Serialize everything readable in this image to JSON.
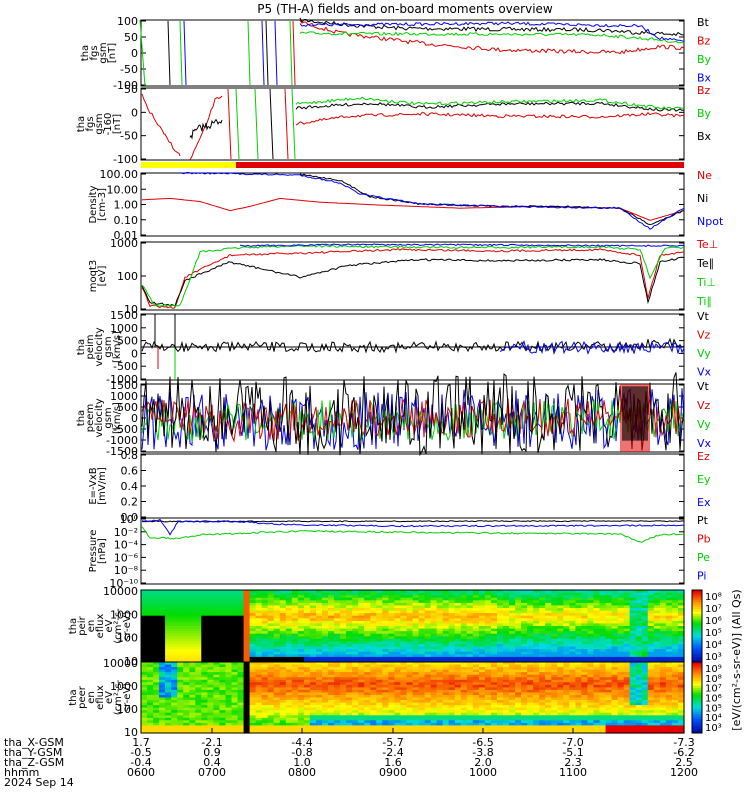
{
  "title": "P5 (TH-A) fields and on-board moments overview",
  "colors": {
    "black": "#000000",
    "red": "#e00000",
    "green": "#00d000",
    "blue": "#0000ff",
    "yellow": "#ffff00"
  },
  "footer": {
    "rows": [
      {
        "label": "tha_X-GSM",
        "values": [
          "1.7",
          "-2.1",
          "-4.4",
          "-5.7",
          "-6.5",
          "-7.0",
          "-7.3"
        ]
      },
      {
        "label": "tha_Y-GSM",
        "values": [
          "-0.5",
          "0.9",
          "-0.8",
          "-2.4",
          "-3.8",
          "-5.1",
          "-6.2"
        ]
      },
      {
        "label": "tha_Z-GSM",
        "values": [
          "-0.4",
          "0.4",
          "1.0",
          "1.6",
          "2.0",
          "2.3",
          "2.5"
        ]
      },
      {
        "label": "hhmm",
        "values": [
          "0600",
          "0700",
          "0800",
          "0900",
          "1000",
          "1100",
          "1200"
        ]
      }
    ],
    "date": "2024 Sep 14"
  },
  "colorbar_label": "[eV/(cm²-s-sr-eV)] (All Qs)",
  "chart_data": [
    {
      "type": "line",
      "ylabel": [
        "tha",
        "fgs",
        "gsm",
        "[nT]"
      ],
      "ylim": [
        -100,
        100
      ],
      "yticks": [
        "100",
        "50",
        "0",
        "-50",
        "-100"
      ],
      "legend": [
        {
          "name": "Bt",
          "color": "#000000"
        },
        {
          "name": "Bz",
          "color": "#e00000"
        },
        {
          "name": "By",
          "color": "#00d000"
        },
        {
          "name": "Bx",
          "color": "#0000ff"
        }
      ]
    },
    {
      "type": "line",
      "ylabel": [
        "tha",
        "fgs",
        "gsm",
        "-160",
        "[nT]"
      ],
      "ylim": [
        -120,
        60
      ],
      "yticks": [
        "50",
        "0",
        "-50",
        "-100"
      ],
      "legend": [
        {
          "name": "Bz",
          "color": "#e00000"
        },
        {
          "name": "By",
          "color": "#00d000"
        },
        {
          "name": "Bx",
          "color": "#000000"
        }
      ]
    },
    {
      "type": "line",
      "ylabel": [
        "Density",
        "[cm-3]"
      ],
      "yscale": "log",
      "ylim": [
        0.003,
        100
      ],
      "yticks": [
        "100.00",
        "10.00",
        "1.00",
        "0.10",
        "0.01"
      ],
      "legend": [
        {
          "name": "Ne",
          "color": "#e00000"
        },
        {
          "name": "Ni",
          "color": "#000000"
        },
        {
          "name": "Npot",
          "color": "#0000ff"
        }
      ]
    },
    {
      "type": "line",
      "ylabel": [
        "moqt3",
        "[eV]"
      ],
      "yscale": "log",
      "ylim": [
        10,
        5000
      ],
      "yticks": [
        "1000",
        "100",
        "10"
      ],
      "legend": [
        {
          "name": "Te⊥",
          "color": "#e00000"
        },
        {
          "name": "Te∥",
          "color": "#000000"
        },
        {
          "name": "Ti⊥",
          "color": "#00d000"
        },
        {
          "name": "Ti∥",
          "color": "#00d000"
        }
      ]
    },
    {
      "type": "line",
      "ylabel": [
        "tha",
        "peim",
        "velocity",
        "gsm",
        "[km/s]"
      ],
      "ylim": [
        -1500,
        1500
      ],
      "yticks": [
        "1500",
        "1000",
        "500",
        "0",
        "-500",
        "-1000"
      ],
      "legend": [
        {
          "name": "Vt",
          "color": "#000000"
        },
        {
          "name": "Vz",
          "color": "#e00000"
        },
        {
          "name": "Vy",
          "color": "#00d000"
        },
        {
          "name": "Vx",
          "color": "#0000ff"
        }
      ]
    },
    {
      "type": "line",
      "ylabel": [
        "tha",
        "peem",
        "velocity",
        "gsm",
        "[km/s]"
      ],
      "ylim": [
        -1500,
        1500
      ],
      "yticks": [
        "1500",
        "1000",
        "500",
        "0",
        "-500",
        "-1000",
        "-1500"
      ],
      "legend": [
        {
          "name": "Vt",
          "color": "#000000"
        },
        {
          "name": "Vz",
          "color": "#e00000"
        },
        {
          "name": "Vy",
          "color": "#00d000"
        },
        {
          "name": "Vx",
          "color": "#0000ff"
        }
      ]
    },
    {
      "type": "line",
      "ylabel": [
        "E=-VxB",
        "[mV/m]"
      ],
      "ylim": [
        0,
        1
      ],
      "yticks": [
        "0.8",
        "0.6",
        "0.4",
        "0.2",
        "0.0"
      ],
      "legend": [
        {
          "name": "Ez",
          "color": "#e00000"
        },
        {
          "name": "Ey",
          "color": "#00d000"
        },
        {
          "name": "Ex",
          "color": "#0000ff"
        }
      ]
    },
    {
      "type": "line",
      "ylabel": [
        "Pressure",
        "[nPa]"
      ],
      "yscale": "log",
      "ylim": [
        1e-10,
        1
      ],
      "yticks": [
        "10⁰",
        "10⁻²",
        "10⁻⁴",
        "10⁻⁶",
        "10⁻⁸",
        "10⁻¹⁰"
      ],
      "legend": [
        {
          "name": "Pt",
          "color": "#000000"
        },
        {
          "name": "Pb",
          "color": "#e00000"
        },
        {
          "name": "Pe",
          "color": "#00d000"
        },
        {
          "name": "Pi",
          "color": "#0000ff"
        }
      ]
    },
    {
      "type": "heatmap",
      "ylabel": [
        "tha",
        "peir",
        "en",
        "eflux",
        "eV",
        "(cm²-s-",
        "sr-eV)"
      ],
      "yscale": "log",
      "ylim": [
        7,
        20000
      ],
      "yticks": [
        "10000",
        "1000",
        "100",
        "10"
      ],
      "colorbar": {
        "ticks": [
          "10⁸",
          "10⁷",
          "10⁶",
          "10⁵",
          "10⁴",
          "10³"
        ]
      }
    },
    {
      "type": "heatmap",
      "ylabel": [
        "tha",
        "peer",
        "en",
        "eflux",
        "eV",
        "(cm²-s-",
        "sr-eV)"
      ],
      "yscale": "log",
      "ylim": [
        7,
        20000
      ],
      "yticks": [
        "10000",
        "1000",
        "100",
        "10"
      ],
      "colorbar": {
        "ticks": [
          "10⁹",
          "10⁸",
          "10⁷",
          "10⁶",
          "10⁵",
          "10⁴",
          "10³"
        ]
      }
    }
  ]
}
